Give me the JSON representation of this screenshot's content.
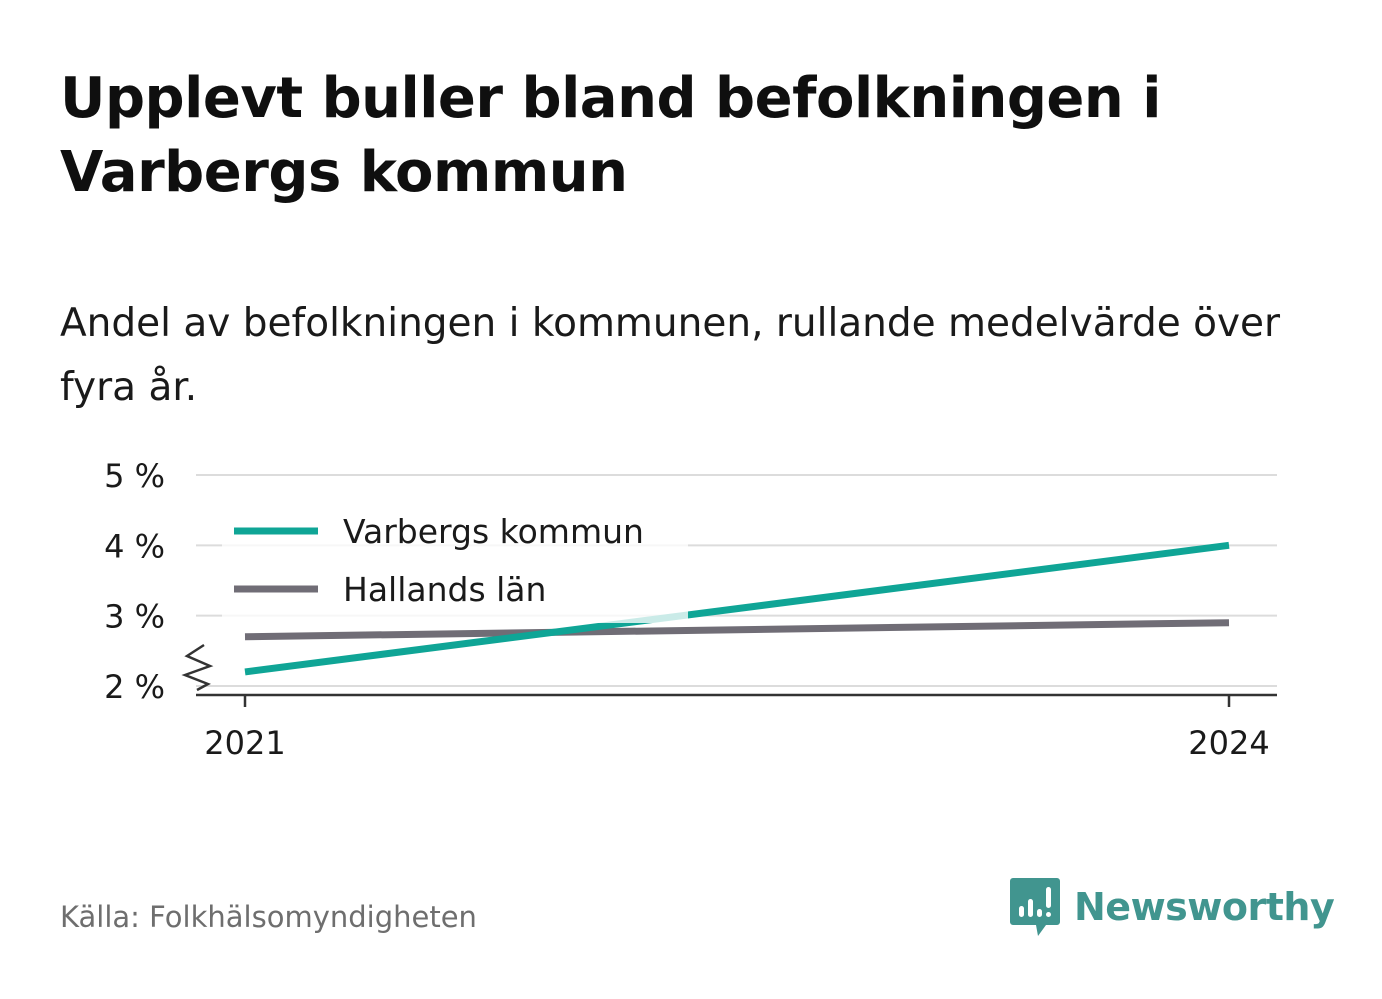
{
  "title": "Upplevt buller bland befolkningen i Varbergs kommun",
  "subtitle": "Andel av befolkningen i kommunen, rullande medelvärde över fyra år.",
  "source": "Källa: Folkhälsomyndigheten",
  "brand": {
    "name": "Newsworthy",
    "icon": "newsworthy-logo-icon",
    "color": "#41958f"
  },
  "colors": {
    "kommun": "#0fa596",
    "lan": "#706d76",
    "grid": "#dcdcdc",
    "axis": "#333333"
  },
  "chart_data": {
    "type": "line",
    "x": [
      "2021",
      "2024"
    ],
    "x_values": [
      2021,
      2024
    ],
    "series": [
      {
        "name": "Varbergs kommun",
        "values": [
          2.2,
          4.0
        ]
      },
      {
        "name": "Hallands län",
        "values": [
          2.7,
          2.9
        ]
      }
    ],
    "yticks": [
      2,
      3,
      4,
      5
    ],
    "ytick_labels": [
      "2 %",
      "3 %",
      "4 %",
      "5 %"
    ],
    "xtick_labels": [
      "2021",
      "2024"
    ],
    "ylim": [
      2,
      5
    ],
    "xlim": [
      2020.85,
      2024.15
    ],
    "y_axis_break": true,
    "grid": true,
    "legend": "top-left",
    "xlabel": "",
    "ylabel": ""
  }
}
